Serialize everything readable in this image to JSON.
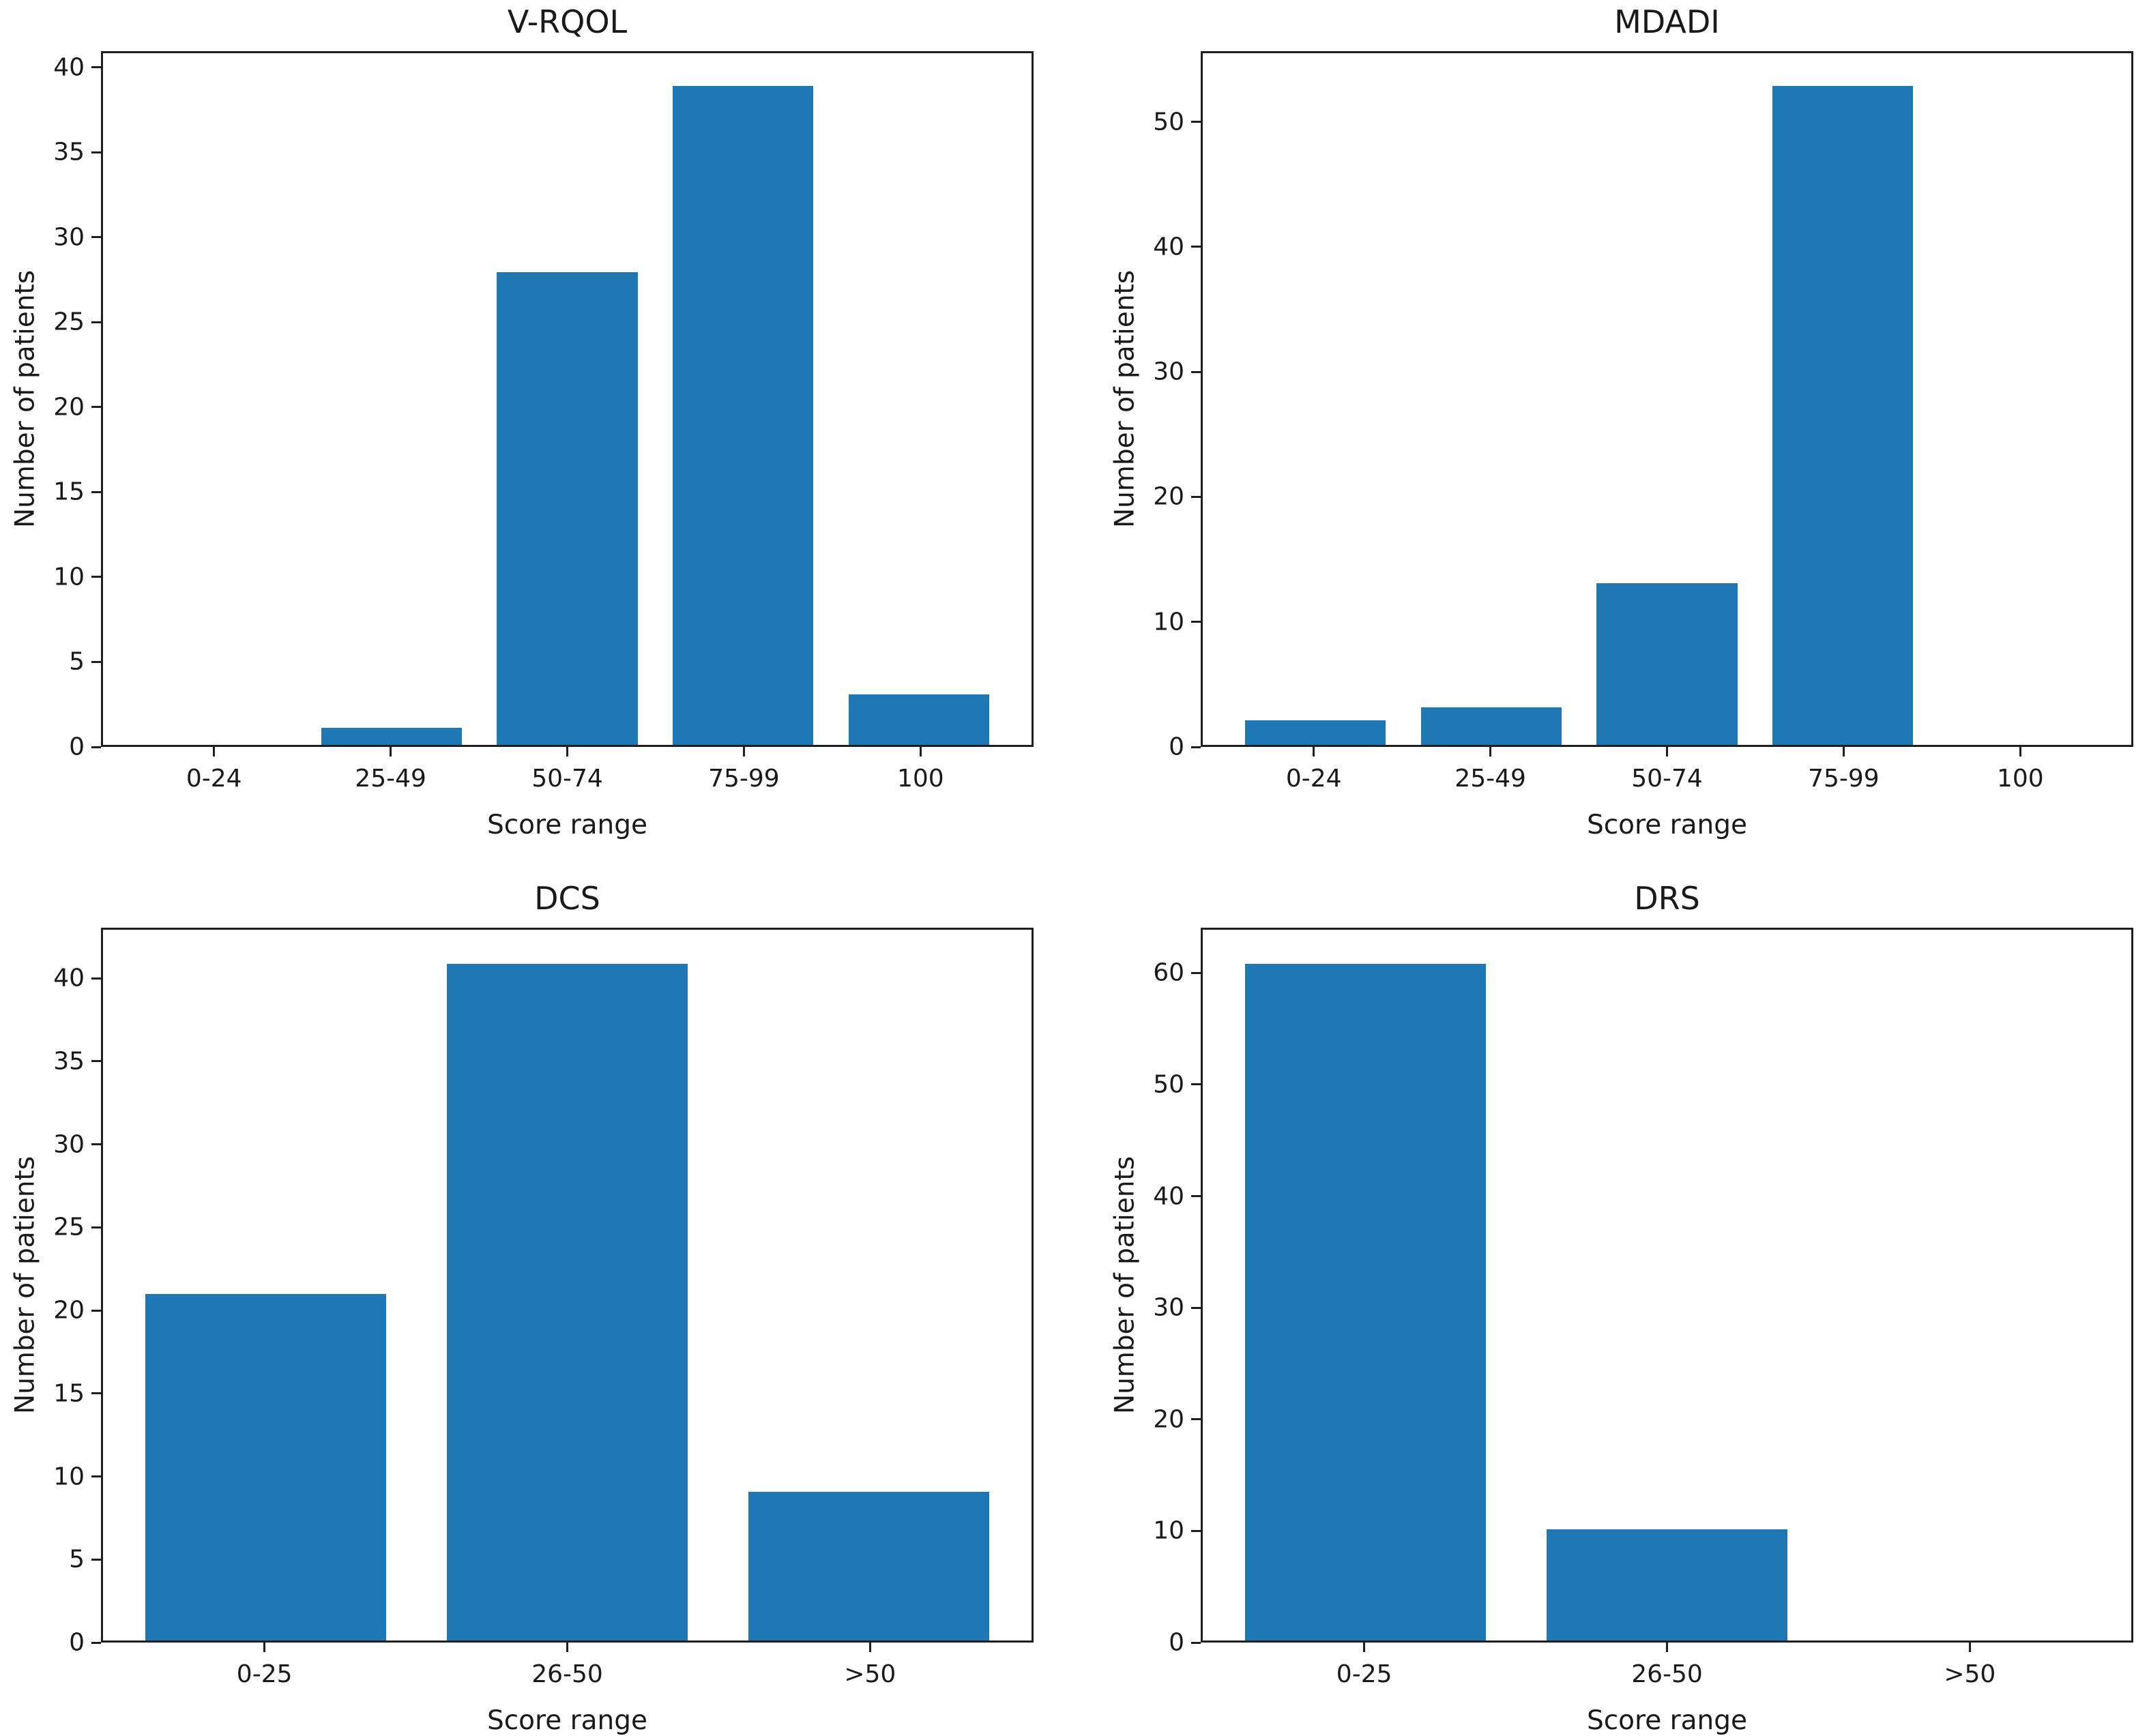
{
  "figure": {
    "background_color": "#ffffff",
    "bar_color": "#1f77b4",
    "axis_color": "#1f1f1f"
  },
  "chart_data": [
    {
      "type": "bar",
      "title": "V-RQOL",
      "xlabel": "Score range",
      "ylabel": "Number of patients",
      "categories": [
        "0-24",
        "25-49",
        "50-74",
        "75-99",
        "100"
      ],
      "values": [
        0,
        1,
        28,
        39,
        3
      ],
      "yticks": [
        0,
        5,
        10,
        15,
        20,
        25,
        30,
        35,
        40
      ],
      "ylim": [
        0,
        40.95
      ],
      "grid": false,
      "legend": null
    },
    {
      "type": "bar",
      "title": "MDADI",
      "xlabel": "Score range",
      "ylabel": "Number of patients",
      "categories": [
        "0-24",
        "25-49",
        "50-74",
        "75-99",
        "100"
      ],
      "values": [
        2,
        3,
        13,
        53,
        0
      ],
      "yticks": [
        0,
        10,
        20,
        30,
        40,
        50
      ],
      "ylim": [
        0,
        55.65
      ],
      "grid": false,
      "legend": null
    },
    {
      "type": "bar",
      "title": "DCS",
      "xlabel": "Score range",
      "ylabel": "Number of patients",
      "categories": [
        "0-25",
        "26-50",
        ">50"
      ],
      "values": [
        21,
        41,
        9
      ],
      "yticks": [
        0,
        5,
        10,
        15,
        20,
        25,
        30,
        35,
        40
      ],
      "ylim": [
        0,
        43.05
      ],
      "grid": false,
      "legend": null
    },
    {
      "type": "bar",
      "title": "DRS",
      "xlabel": "Score range",
      "ylabel": "Number of patients",
      "categories": [
        "0-25",
        "26-50",
        ">50"
      ],
      "values": [
        61,
        10,
        0
      ],
      "yticks": [
        0,
        10,
        20,
        30,
        40,
        50,
        60
      ],
      "ylim": [
        0,
        64.05
      ],
      "grid": false,
      "legend": null
    }
  ]
}
